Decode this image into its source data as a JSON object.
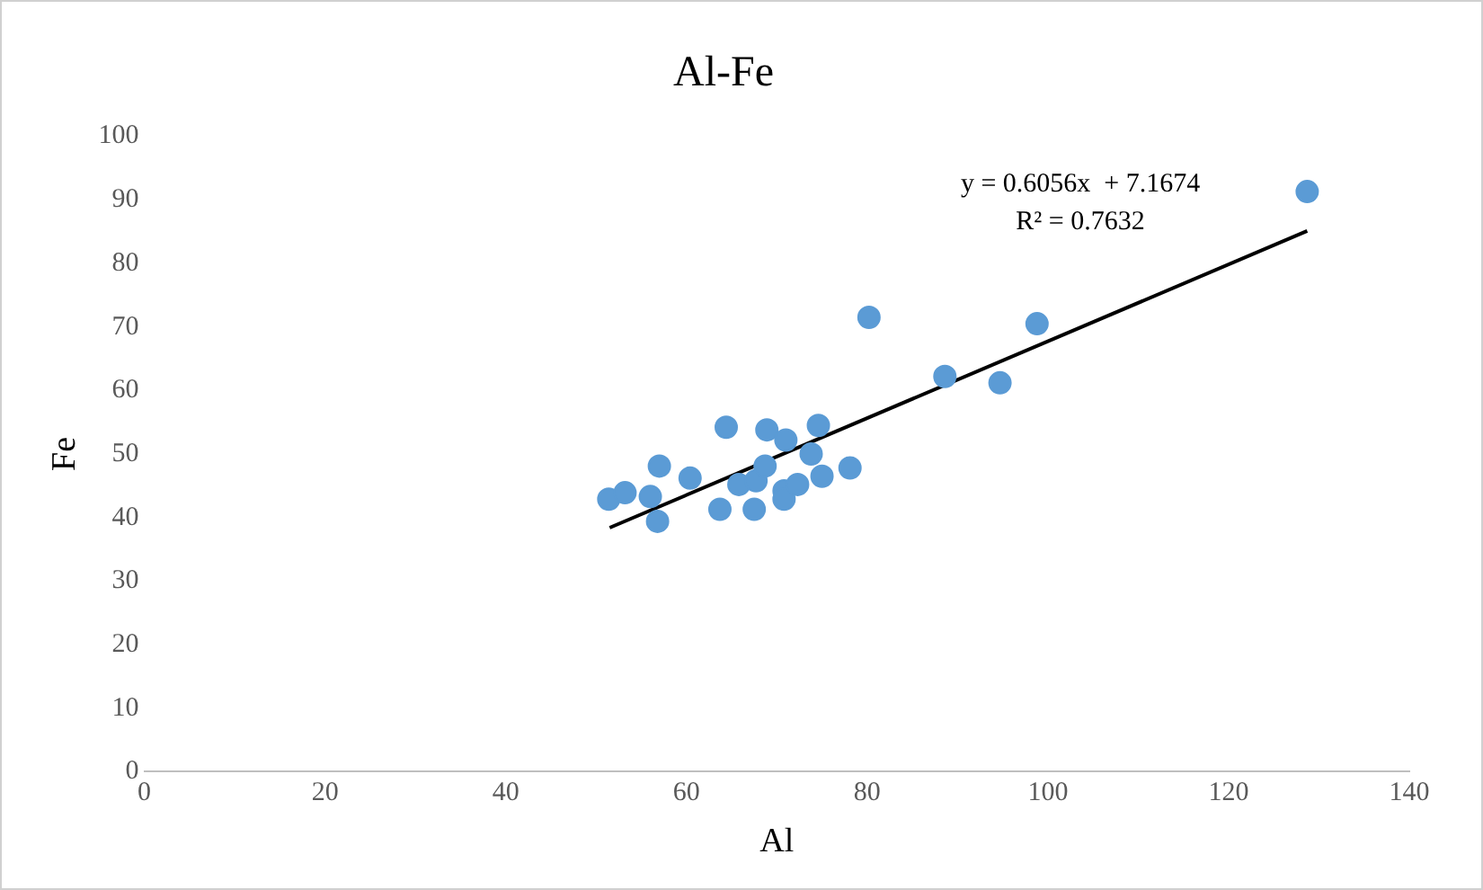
{
  "chart_data": {
    "type": "scatter",
    "title": "Al-Fe",
    "xlabel": "Al",
    "ylabel": "Fe",
    "xlim": [
      0,
      140
    ],
    "xticks": [
      0,
      20,
      40,
      60,
      80,
      100,
      120,
      140
    ],
    "ylim": [
      0,
      100
    ],
    "yticks": [
      0,
      10,
      20,
      30,
      40,
      50,
      60,
      70,
      80,
      90,
      100
    ],
    "grid": false,
    "legend": false,
    "annotations": [
      "y = 0.6056x  + 7.1674",
      "R² = 0.7632"
    ],
    "series": [
      {
        "color": "#5b9bd5",
        "marker": "circle",
        "x": [
          51.4,
          53.2,
          56.0,
          57.0,
          56.8,
          60.4,
          63.7,
          64.4,
          65.8,
          67.7,
          67.5,
          68.7,
          68.9,
          70.8,
          70.8,
          71.0,
          72.3,
          73.8,
          74.6,
          75.0,
          78.1,
          80.2,
          88.6,
          94.7,
          98.8,
          128.7
        ],
        "values": [
          42.9,
          43.9,
          43.3,
          48.1,
          39.4,
          46.2,
          41.3,
          54.2,
          45.2,
          45.8,
          41.3,
          48.1,
          53.8,
          44.2,
          42.9,
          52.2,
          45.2,
          50.0,
          54.5,
          46.5,
          47.8,
          71.5,
          62.2,
          61.2,
          70.5,
          91.3
        ]
      },
      {
        "type": "line",
        "color": "#000000",
        "line_style": "solid",
        "marker": "none",
        "x": [
          51.5,
          128.7
        ],
        "values": [
          38.4,
          85.1
        ]
      }
    ]
  }
}
